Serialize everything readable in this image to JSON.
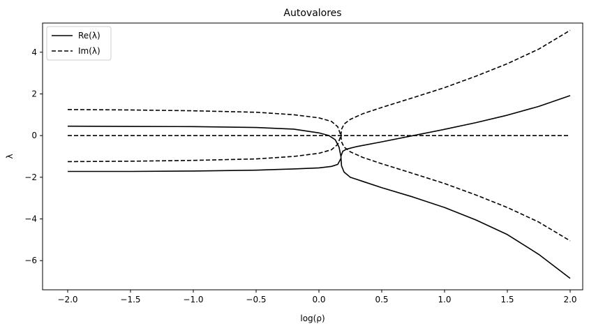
{
  "chart_data": {
    "type": "line",
    "title": "Autovalores",
    "xlabel": "log(ρ)",
    "ylabel": "λ",
    "xlim": [
      -2.2,
      2.1
    ],
    "ylim": [
      -7.4,
      5.4
    ],
    "xticks": [
      -2.0,
      -1.5,
      -1.0,
      -0.5,
      0.0,
      0.5,
      1.0,
      1.5,
      2.0
    ],
    "xtick_labels": [
      "−2.0",
      "−1.5",
      "−1.0",
      "−0.5",
      "0.0",
      "0.5",
      "1.0",
      "1.5",
      "2.0"
    ],
    "yticks": [
      -6,
      -4,
      -2,
      0,
      2,
      4
    ],
    "ytick_labels": [
      "−6",
      "−4",
      "−2",
      "0",
      "2",
      "4"
    ],
    "grid": false,
    "legend": {
      "position": "top-left",
      "entries": [
        {
          "label": "Re(λ)",
          "style": "solid"
        },
        {
          "label": "Im(λ)",
          "style": "dashed"
        }
      ]
    },
    "series": [
      {
        "kind": "re",
        "style": "solid",
        "x": [
          -2.0,
          -1.5,
          -1.0,
          -0.5,
          -0.2,
          0.0,
          0.08,
          0.13,
          0.16,
          0.175
        ],
        "y": [
          0.45,
          0.44,
          0.43,
          0.39,
          0.31,
          0.13,
          0.0,
          -0.2,
          -0.55,
          -1.0
        ]
      },
      {
        "kind": "re",
        "style": "solid",
        "x": [
          -2.0,
          -1.5,
          -1.0,
          -0.5,
          -0.2,
          0.0,
          0.1,
          0.15,
          0.175
        ],
        "y": [
          -1.72,
          -1.72,
          -1.7,
          -1.66,
          -1.6,
          -1.55,
          -1.48,
          -1.38,
          -1.1
        ]
      },
      {
        "kind": "re",
        "style": "solid",
        "x": [
          0.175,
          0.19,
          0.22,
          0.3,
          0.5,
          0.75,
          1.0,
          1.25,
          1.5,
          1.75,
          2.0
        ],
        "y": [
          -1.0,
          -0.75,
          -0.65,
          -0.53,
          -0.3,
          0.0,
          0.3,
          0.62,
          0.98,
          1.4,
          1.92
        ]
      },
      {
        "kind": "re",
        "style": "solid",
        "x": [
          0.175,
          0.18,
          0.2,
          0.25,
          0.35,
          0.5,
          0.75,
          1.0,
          1.25,
          1.5,
          1.75,
          2.0
        ],
        "y": [
          -1.0,
          -1.45,
          -1.75,
          -2.0,
          -2.2,
          -2.5,
          -2.95,
          -3.45,
          -4.05,
          -4.75,
          -5.7,
          -6.85
        ]
      },
      {
        "kind": "im",
        "style": "dashed",
        "x": [
          -2.0,
          2.0
        ],
        "y": [
          0.0,
          0.0
        ]
      },
      {
        "kind": "im",
        "style": "dashed",
        "x": [
          -2.0,
          -1.5,
          -1.0,
          -0.5,
          -0.2,
          0.0,
          0.1,
          0.15,
          0.175
        ],
        "y": [
          1.25,
          1.23,
          1.19,
          1.12,
          1.0,
          0.85,
          0.68,
          0.42,
          0.0
        ]
      },
      {
        "kind": "im",
        "style": "dashed",
        "x": [
          -2.0,
          -1.5,
          -1.0,
          -0.5,
          -0.2,
          0.0,
          0.1,
          0.15,
          0.175
        ],
        "y": [
          -1.25,
          -1.23,
          -1.19,
          -1.12,
          -1.0,
          -0.85,
          -0.68,
          -0.42,
          0.0
        ]
      },
      {
        "kind": "im",
        "style": "dashed",
        "x": [
          0.175,
          0.18,
          0.2,
          0.25,
          0.35,
          0.5,
          0.75,
          1.0,
          1.25,
          1.5,
          1.75,
          2.0
        ],
        "y": [
          0.0,
          0.3,
          0.55,
          0.78,
          1.05,
          1.35,
          1.82,
          2.3,
          2.85,
          3.45,
          4.15,
          5.05
        ]
      },
      {
        "kind": "im",
        "style": "dashed",
        "x": [
          0.175,
          0.18,
          0.2,
          0.25,
          0.35,
          0.5,
          0.75,
          1.0,
          1.25,
          1.5,
          1.75,
          2.0
        ],
        "y": [
          0.0,
          -0.3,
          -0.55,
          -0.78,
          -1.05,
          -1.35,
          -1.82,
          -2.3,
          -2.85,
          -3.45,
          -4.15,
          -5.05
        ]
      }
    ]
  }
}
